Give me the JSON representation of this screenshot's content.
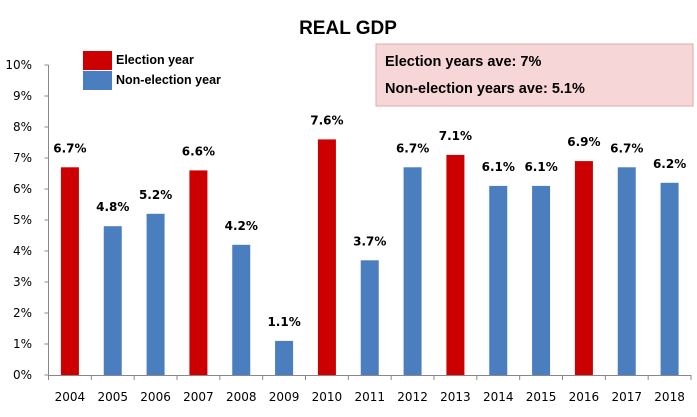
{
  "chart_data": {
    "type": "bar",
    "title": "REAL GDP",
    "xlabel": "",
    "ylabel": "",
    "ylim": [
      0,
      10
    ],
    "yticks": [
      "0%",
      "1%",
      "2%",
      "3%",
      "4%",
      "5%",
      "6%",
      "7%",
      "8%",
      "9%",
      "10%"
    ],
    "grid": false,
    "categories": [
      "2004",
      "2005",
      "2006",
      "2007",
      "2008",
      "2009",
      "2010",
      "2011",
      "2012",
      "2013",
      "2014",
      "2015",
      "2016",
      "2017",
      "2018"
    ],
    "values": [
      6.7,
      4.8,
      5.2,
      6.6,
      4.2,
      1.1,
      7.6,
      3.7,
      6.7,
      7.1,
      6.1,
      6.1,
      6.9,
      6.7,
      6.2
    ],
    "value_labels": [
      "6.7%",
      "4.8%",
      "5.2%",
      "6.6%",
      "4.2%",
      "1.1%",
      "7.6%",
      "3.7%",
      "6.7%",
      "7.1%",
      "6.1%",
      "6.1%",
      "6.9%",
      "6.7%",
      "6.2%"
    ],
    "series_type": [
      "election",
      "non-election",
      "non-election",
      "election",
      "non-election",
      "non-election",
      "election",
      "non-election",
      "non-election",
      "election",
      "non-election",
      "non-election",
      "election",
      "non-election",
      "non-election"
    ],
    "legend": {
      "placement": "top-left",
      "entries": [
        {
          "key": "election",
          "label": "Election year",
          "color": "#cc0000"
        },
        {
          "key": "non-election",
          "label": "Non-election year",
          "color": "#4a7ebf"
        }
      ]
    },
    "annotations": {
      "placement": "top-right",
      "background": "#f6d6d6",
      "border": "#e3a9a9",
      "lines": [
        "Election years ave: 7%",
        "Non-election years ave: 5.1%"
      ]
    }
  }
}
